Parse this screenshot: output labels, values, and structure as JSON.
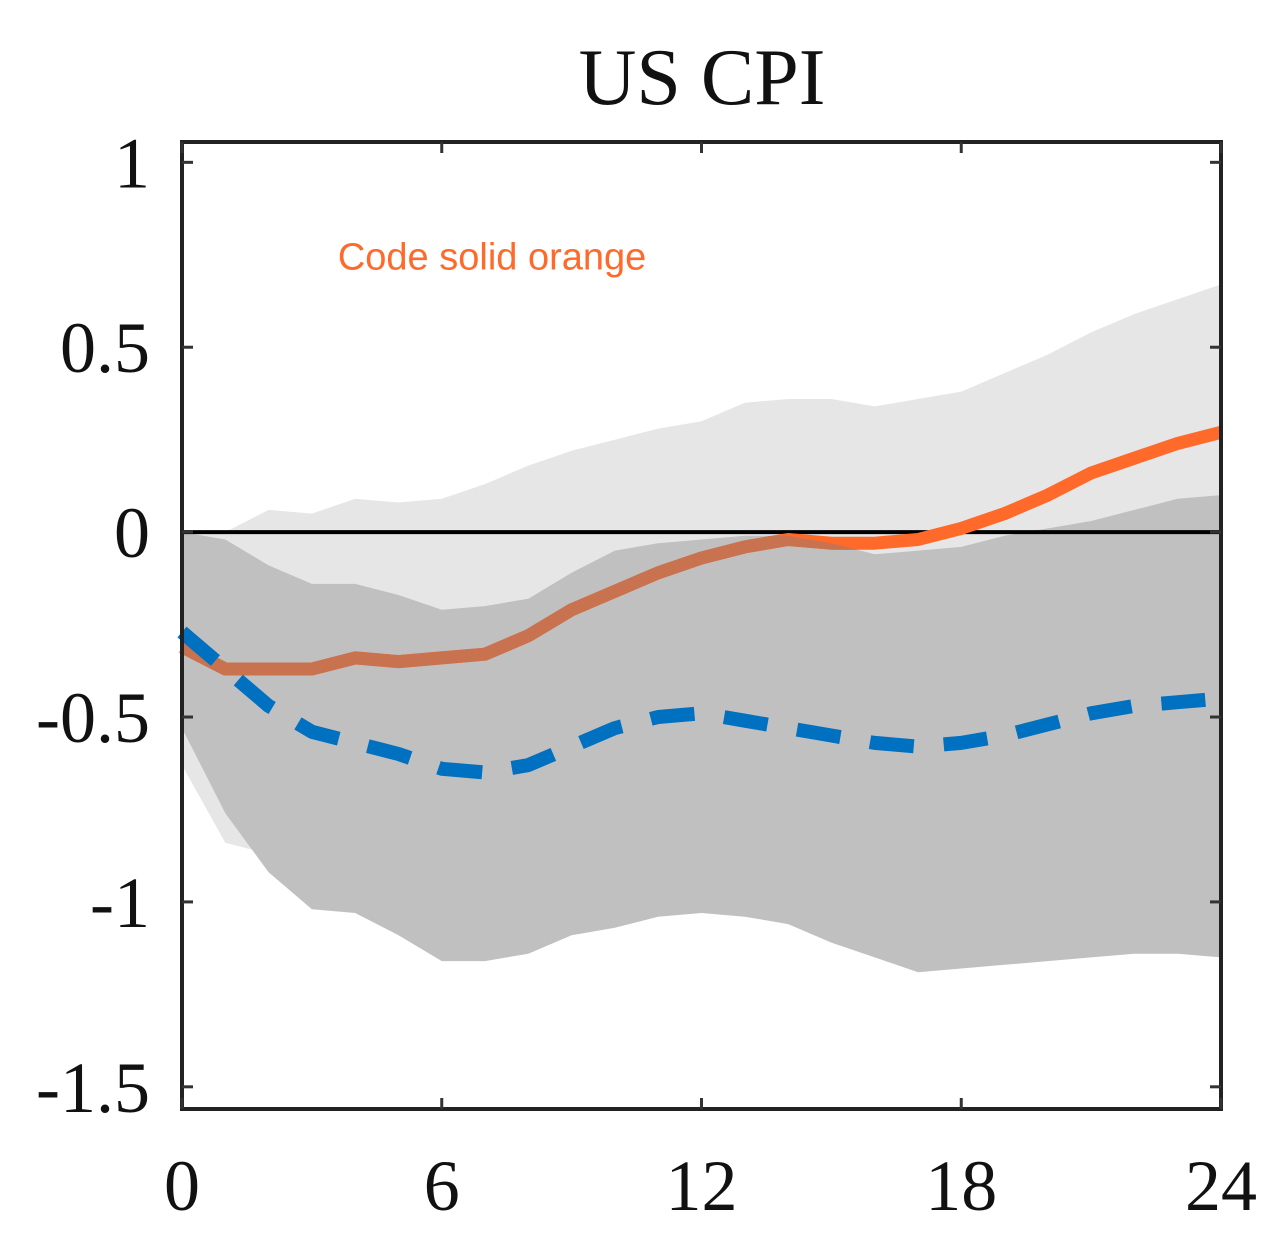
{
  "chart_data": {
    "type": "line",
    "title": "US CPI",
    "xlabel": "",
    "ylabel": "",
    "xlim": [
      0,
      24
    ],
    "ylim": [
      -1.5,
      1
    ],
    "x_ticks": [
      0,
      6,
      12,
      18,
      24
    ],
    "y_ticks": [
      1,
      0.5,
      0,
      -0.5,
      -1,
      -1.5
    ],
    "x_tick_labels": [
      "0",
      "6",
      "12",
      "18",
      "24"
    ],
    "y_tick_labels": [
      "1",
      "0.5",
      "0",
      "-0.5",
      "-1",
      "-1.5"
    ],
    "grid": false,
    "zero_line": true,
    "annotation": {
      "text": "Code solid orange",
      "x": 3.6,
      "y": 0.71,
      "color": "#ff6a2b"
    },
    "x": [
      0,
      1,
      2,
      3,
      4,
      5,
      6,
      7,
      8,
      9,
      10,
      11,
      12,
      13,
      14,
      15,
      16,
      17,
      18,
      19,
      20,
      21,
      22,
      23,
      24
    ],
    "bands": [
      {
        "color": "#e6e6e6",
        "upper": [
          0.0,
          0.0,
          0.06,
          0.05,
          0.09,
          0.08,
          0.09,
          0.13,
          0.18,
          0.22,
          0.25,
          0.28,
          0.3,
          0.35,
          0.36,
          0.36,
          0.34,
          0.36,
          0.38,
          0.43,
          0.48,
          0.54,
          0.59,
          0.63,
          0.67
        ],
        "lower": [
          -0.63,
          -0.84,
          -0.87,
          -0.89,
          -0.81,
          -0.81,
          -0.82,
          -0.79,
          -0.74,
          -0.66,
          -0.59,
          -0.51,
          -0.45,
          -0.43,
          -0.42,
          -0.42,
          -0.42,
          -0.41,
          -0.38,
          -0.35,
          -0.31,
          -0.26,
          -0.21,
          -0.16,
          -0.11
        ]
      },
      {
        "color": "#c0c0c0",
        "upper": [
          0.0,
          -0.02,
          -0.09,
          -0.14,
          -0.14,
          -0.17,
          -0.21,
          -0.2,
          -0.18,
          -0.11,
          -0.05,
          -0.03,
          -0.02,
          -0.01,
          -0.01,
          -0.03,
          -0.06,
          -0.05,
          -0.04,
          -0.01,
          0.01,
          0.03,
          0.06,
          0.09,
          0.1
        ],
        "lower": [
          -0.53,
          -0.76,
          -0.92,
          -1.02,
          -1.03,
          -1.09,
          -1.16,
          -1.16,
          -1.14,
          -1.09,
          -1.07,
          -1.04,
          -1.03,
          -1.04,
          -1.06,
          -1.11,
          -1.15,
          -1.19,
          -1.18,
          -1.17,
          -1.16,
          -1.15,
          -1.14,
          -1.14,
          -1.15
        ]
      }
    ],
    "series": [
      {
        "style": "solid",
        "color": "#ff6a2b",
        "values": [
          -0.31,
          -0.37,
          -0.37,
          -0.37,
          -0.34,
          -0.35,
          -0.34,
          -0.33,
          -0.28,
          -0.21,
          -0.16,
          -0.11,
          -0.07,
          -0.04,
          -0.02,
          -0.03,
          -0.03,
          -0.02,
          0.01,
          0.05,
          0.1,
          0.16,
          0.2,
          0.24,
          0.27
        ]
      },
      {
        "style": "dashed",
        "color": "#0070c0",
        "values": [
          -0.27,
          -0.37,
          -0.47,
          -0.54,
          -0.57,
          -0.6,
          -0.64,
          -0.65,
          -0.63,
          -0.58,
          -0.53,
          -0.5,
          -0.49,
          -0.51,
          -0.53,
          -0.55,
          -0.57,
          -0.58,
          -0.57,
          -0.55,
          -0.52,
          -0.49,
          -0.47,
          -0.46,
          -0.45
        ]
      }
    ]
  }
}
